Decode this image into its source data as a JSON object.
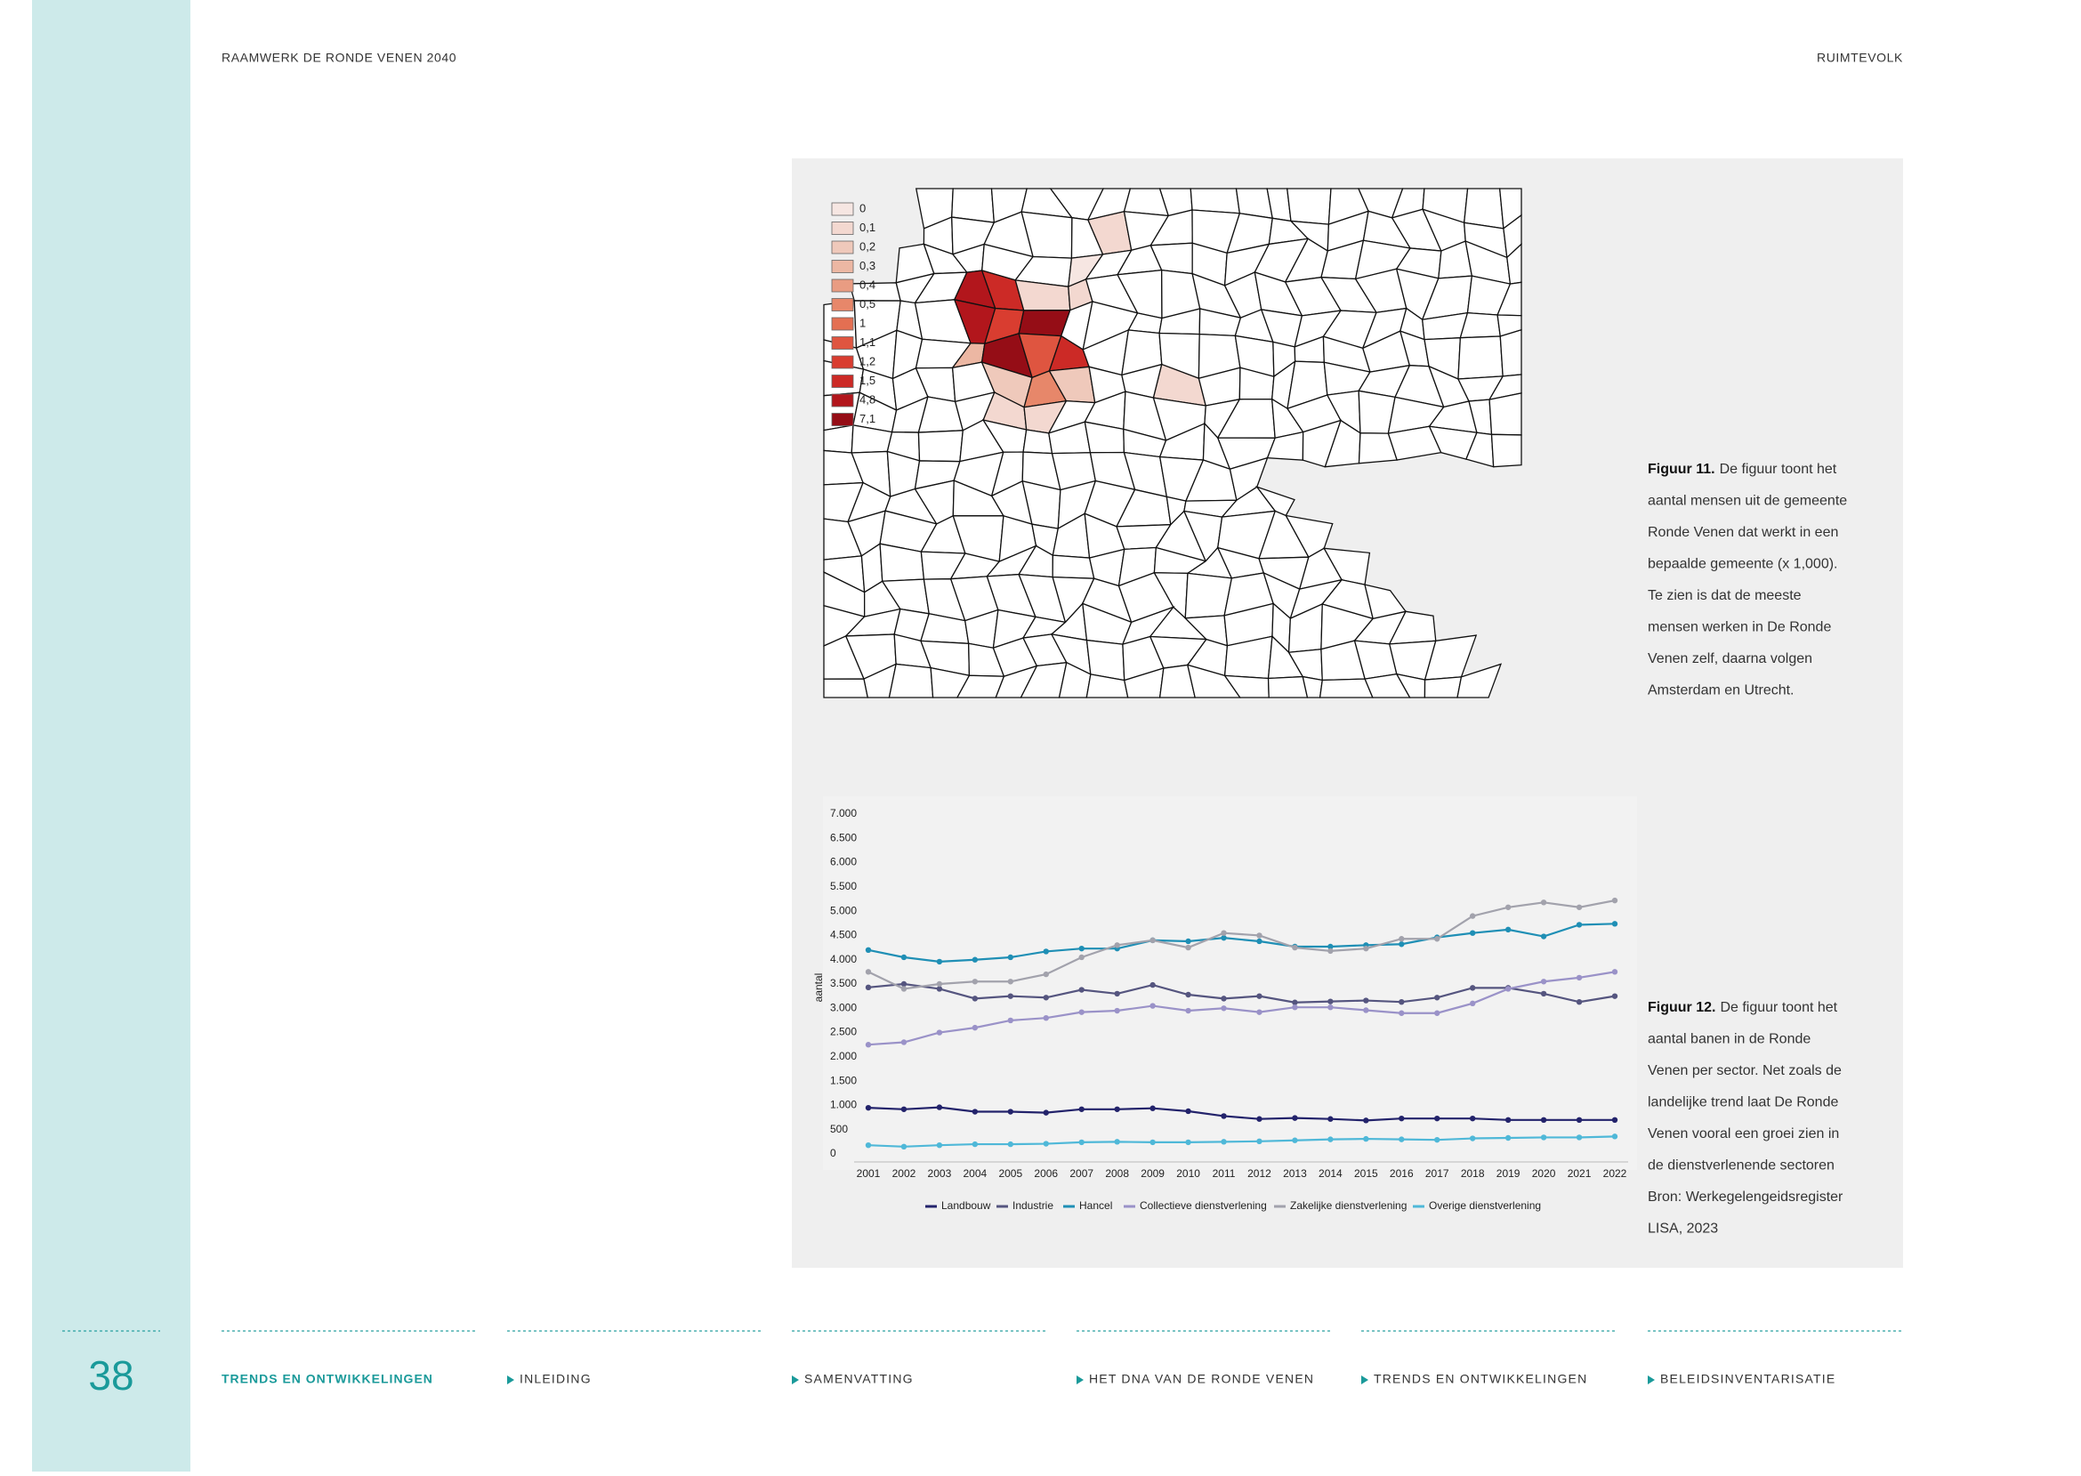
{
  "header": {
    "left": "RAAMWERK DE RONDE VENEN 2040",
    "right": "RUIMTEVOLK"
  },
  "map": {
    "legend": [
      {
        "label": "0",
        "color": "#f6e6e2"
      },
      {
        "label": "0,1",
        "color": "#f3d8d0"
      },
      {
        "label": "0,2",
        "color": "#efc9bb"
      },
      {
        "label": "0,3",
        "color": "#ecb7a3"
      },
      {
        "label": "0,4",
        "color": "#e99c82"
      },
      {
        "label": "0,5",
        "color": "#e7876a"
      },
      {
        "label": "1",
        "color": "#e46f52"
      },
      {
        "label": "1,1",
        "color": "#df5540"
      },
      {
        "label": "1,2",
        "color": "#d93d30"
      },
      {
        "label": "1,5",
        "color": "#cc2a26"
      },
      {
        "label": "4,8",
        "color": "#b2161c"
      },
      {
        "label": "7,1",
        "color": "#950d16"
      }
    ]
  },
  "figure11": {
    "label": "Figuur 11.",
    "lines": [
      "De figuur toont het",
      "aantal mensen uit de gemeente",
      "Ronde Venen dat werkt in een",
      "bepaalde gemeente (x 1,000).",
      "Te zien is dat de meeste",
      "mensen werken in De Ronde",
      "Venen zelf, daarna volgen",
      "Amsterdam en Utrecht."
    ]
  },
  "figure12": {
    "label": "Figuur 12.",
    "lines": [
      "De figuur toont het",
      "aantal banen in de Ronde",
      "Venen per sector. Net zoals de",
      "landelijke trend laat De Ronde",
      "Venen vooral een groei zien in",
      "de dienstverlenende sectoren",
      "Bron: Werkegelengeidsregister",
      "LISA, 2023"
    ]
  },
  "chart_data": {
    "type": "line",
    "y_label": "aantal",
    "categories": [
      "2001",
      "2002",
      "2003",
      "2004",
      "2005",
      "2006",
      "2007",
      "2008",
      "2009",
      "2010",
      "2011",
      "2012",
      "2013",
      "2014",
      "2015",
      "2016",
      "2017",
      "2018",
      "2019",
      "2020",
      "2021",
      "2022"
    ],
    "ylim": [
      0,
      7000
    ],
    "yticks": [
      0,
      500,
      {
        "value": 1000,
        "label": "1.000"
      },
      {
        "value": 1500,
        "label": "1.500"
      },
      {
        "value": 2000,
        "label": "2.000"
      },
      {
        "value": 2500,
        "label": "2.500"
      },
      {
        "value": 3000,
        "label": "3.000"
      },
      {
        "value": 3500,
        "label": "3.500"
      },
      {
        "value": 4000,
        "label": "4.000"
      },
      {
        "value": 4500,
        "label": "4.500"
      },
      {
        "value": 5000,
        "label": "5.000"
      },
      {
        "value": 5500,
        "label": "5.500"
      },
      {
        "value": 6000,
        "label": "6.000"
      },
      {
        "value": 6500,
        "label": "6.500"
      },
      {
        "value": 7000,
        "label": "7.000"
      }
    ],
    "series": [
      {
        "name": "Landbouw",
        "color": "#23236b",
        "values": [
          950,
          920,
          960,
          870,
          870,
          850,
          920,
          920,
          940,
          880,
          780,
          720,
          740,
          720,
          690,
          730,
          730,
          730,
          700,
          700,
          700,
          700
        ]
      },
      {
        "name": "Industrie",
        "color": "#55557f",
        "values": [
          3430,
          3500,
          3400,
          3200,
          3250,
          3220,
          3380,
          3300,
          3480,
          3280,
          3200,
          3250,
          3120,
          3140,
          3160,
          3130,
          3220,
          3420,
          3420,
          3300,
          3130,
          3250
        ]
      },
      {
        "name": "Hancel",
        "color": "#1f8fb5",
        "values": [
          4200,
          4050,
          3960,
          4000,
          4050,
          4170,
          4230,
          4230,
          4400,
          4380,
          4450,
          4380,
          4270,
          4270,
          4300,
          4320,
          4460,
          4550,
          4620,
          4480,
          4720,
          4740
        ]
      },
      {
        "name": "Collectieve dienstverlening",
        "color": "#9a92c8",
        "values": [
          2250,
          2300,
          2500,
          2600,
          2750,
          2800,
          2920,
          2950,
          3050,
          2950,
          3000,
          2920,
          3020,
          3020,
          2960,
          2900,
          2900,
          3100,
          3400,
          3550,
          3630,
          3750
        ]
      },
      {
        "name": "Zakelijke dienstverlening",
        "color": "#a2a2ac",
        "values": [
          3750,
          3400,
          3500,
          3550,
          3550,
          3700,
          4050,
          4300,
          4400,
          4250,
          4550,
          4500,
          4250,
          4180,
          4230,
          4430,
          4430,
          4900,
          5080,
          5180,
          5080,
          5220
        ]
      },
      {
        "name": "Overige dienstverlening",
        "color": "#4fb8d8",
        "values": [
          180,
          150,
          180,
          200,
          200,
          210,
          240,
          250,
          240,
          240,
          250,
          260,
          280,
          300,
          310,
          300,
          290,
          320,
          330,
          340,
          340,
          360
        ]
      }
    ]
  },
  "footer": {
    "page_number": "38",
    "section": "TRENDS EN ONTWIKKELINGEN",
    "nav": [
      "INLEIDING",
      "SAMENVATTING",
      "HET DNA VAN DE RONDE VENEN",
      "TRENDS EN ONTWIKKELINGEN",
      "BELEIDSINVENTARISATIE"
    ]
  }
}
